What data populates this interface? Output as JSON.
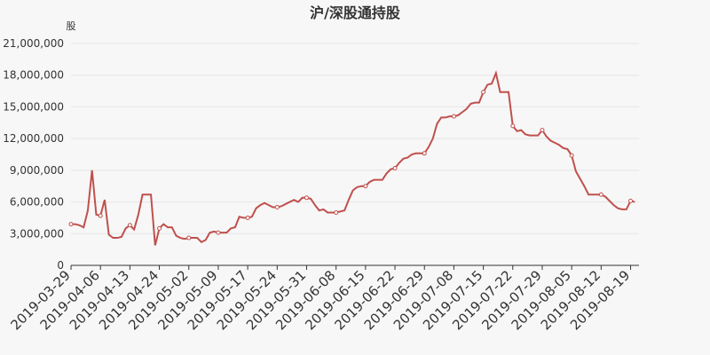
{
  "chart_data": {
    "type": "line",
    "title": "沪/深股通持股",
    "y_label": "股",
    "categories": [
      "2019-03-29",
      null,
      null,
      null,
      null,
      null,
      null,
      "2019-04-06",
      null,
      null,
      null,
      null,
      null,
      null,
      "2019-04-13",
      null,
      null,
      null,
      null,
      null,
      null,
      "2019-04-24",
      null,
      null,
      null,
      null,
      null,
      null,
      "2019-05-02",
      null,
      null,
      null,
      null,
      null,
      null,
      "2019-05-09",
      null,
      null,
      null,
      null,
      null,
      null,
      "2019-05-17",
      null,
      null,
      null,
      null,
      null,
      null,
      "2019-05-24",
      null,
      null,
      null,
      null,
      null,
      null,
      "2019-05-31",
      null,
      null,
      null,
      null,
      null,
      null,
      "2019-06-08",
      null,
      null,
      null,
      null,
      null,
      null,
      "2019-06-15",
      null,
      null,
      null,
      null,
      null,
      null,
      "2019-06-22",
      null,
      null,
      null,
      null,
      null,
      null,
      "2019-06-29",
      null,
      null,
      null,
      null,
      null,
      null,
      "2019-07-08",
      null,
      null,
      null,
      null,
      null,
      null,
      "2019-07-15",
      null,
      null,
      null,
      null,
      null,
      null,
      "2019-07-22",
      null,
      null,
      null,
      null,
      null,
      null,
      "2019-07-29",
      null,
      null,
      null,
      null,
      null,
      null,
      "2019-08-05",
      null,
      null,
      null,
      null,
      null,
      null,
      "2019-08-12",
      null,
      null,
      null,
      null,
      null,
      null,
      "2019-08-19",
      null
    ],
    "series": [
      {
        "name": "沪/深股通持股",
        "color": "#c0504d",
        "values": [
          3900000,
          3900000,
          3800000,
          3600000,
          5200000,
          9000000,
          4800000,
          4700000,
          6200000,
          2900000,
          2600000,
          2600000,
          2700000,
          3500000,
          3800000,
          3400000,
          4800000,
          6700000,
          6700000,
          6700000,
          1900000,
          3500000,
          3900000,
          3600000,
          3600000,
          2800000,
          2600000,
          2500000,
          2600000,
          2600000,
          2600000,
          2200000,
          2400000,
          3100000,
          3200000,
          3100000,
          3100000,
          3100000,
          3500000,
          3600000,
          4600000,
          4500000,
          4500000,
          4600000,
          5400000,
          5700000,
          5900000,
          5700000,
          5500000,
          5500000,
          5600000,
          5800000,
          6000000,
          6200000,
          6000000,
          6400000,
          6400000,
          6300000,
          5700000,
          5200000,
          5300000,
          5000000,
          5000000,
          5000000,
          5100000,
          5200000,
          6200000,
          7100000,
          7400000,
          7500000,
          7500000,
          7900000,
          8100000,
          8100000,
          8100000,
          8700000,
          9100000,
          9200000,
          9700000,
          10100000,
          10200000,
          10500000,
          10600000,
          10600000,
          10600000,
          11200000,
          12000000,
          13400000,
          14000000,
          14000000,
          14100000,
          14100000,
          14200000,
          14500000,
          14800000,
          15300000,
          15400000,
          15400000,
          16400000,
          17100000,
          17200000,
          18200000,
          16400000,
          16400000,
          16400000,
          13200000,
          12700000,
          12800000,
          12400000,
          12300000,
          12300000,
          12300000,
          12800000,
          12200000,
          11800000,
          11600000,
          11400000,
          11100000,
          11000000,
          10400000,
          8900000,
          8200000,
          7500000,
          6700000,
          6700000,
          6700000,
          6700000,
          6500000,
          6100000,
          5700000,
          5400000,
          5300000,
          5300000,
          6100000,
          6000000
        ]
      }
    ],
    "ylim": [
      0,
      21000000
    ],
    "yticks": [
      0,
      {
        "value": 3000000,
        "label": "3,000,000"
      },
      {
        "value": 6000000,
        "label": "6,000,000"
      },
      {
        "value": 9000000,
        "label": "9,000,000"
      },
      {
        "value": 12000000,
        "label": "12,000,000"
      },
      {
        "value": 15000000,
        "label": "15,000,000"
      },
      {
        "value": 18000000,
        "label": "18,000,000"
      },
      {
        "value": 21000000,
        "label": "21,000,000"
      }
    ],
    "grid": true
  }
}
